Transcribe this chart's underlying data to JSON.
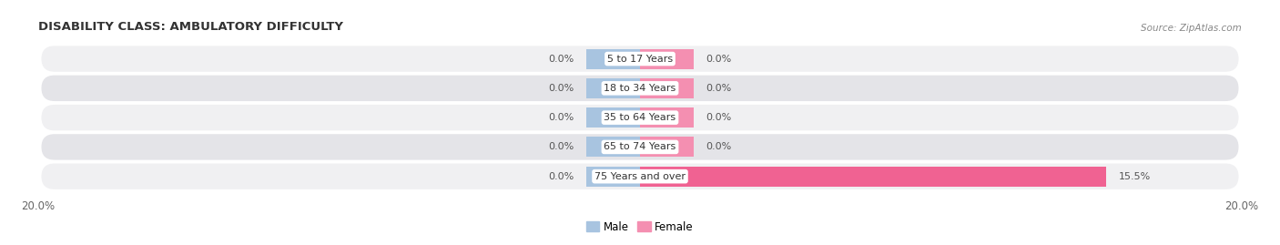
{
  "title": "DISABILITY CLASS: AMBULATORY DIFFICULTY",
  "source": "Source: ZipAtlas.com",
  "categories": [
    "5 to 17 Years",
    "18 to 34 Years",
    "35 to 64 Years",
    "65 to 74 Years",
    "75 Years and over"
  ],
  "male_values": [
    0.0,
    0.0,
    0.0,
    0.0,
    0.0
  ],
  "female_values": [
    0.0,
    0.0,
    0.0,
    0.0,
    15.5
  ],
  "xlim": [
    -20.0,
    20.0
  ],
  "male_color": "#a8c4e0",
  "female_color": "#f48fb1",
  "female_color_bright": "#f06292",
  "row_bg_even": "#f0f0f2",
  "row_bg_odd": "#e4e4e8",
  "label_fontsize": 8.0,
  "title_fontsize": 9.5,
  "axis_label_fontsize": 8.5,
  "legend_fontsize": 8.5,
  "bar_height": 0.68,
  "min_bar_width": 1.8,
  "x_axis_min": -20.0,
  "x_axis_max": 20.0
}
